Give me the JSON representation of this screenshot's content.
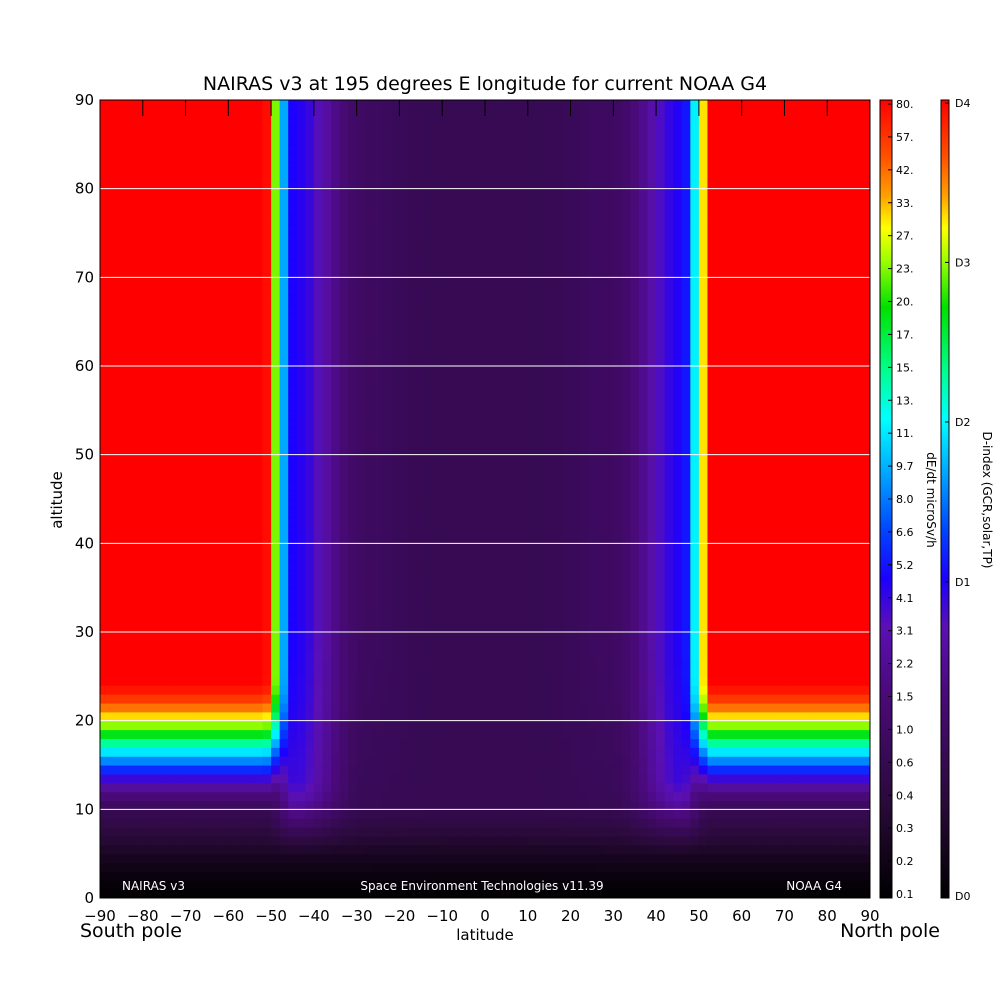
{
  "chart_data": {
    "type": "heatmap",
    "title": "NAIRAS v3 at 195 degrees E longitude for current NOAA G4",
    "xlabel": "latitude",
    "ylabel": "altitude",
    "x_left_label": "South pole",
    "x_right_label": "North pole",
    "xlim": [
      -90,
      90
    ],
    "ylim": [
      0,
      90
    ],
    "x_ticks": [
      "-90",
      "-80",
      "-70",
      "-60",
      "-50",
      "-40",
      "-30",
      "-20",
      "-10",
      "0",
      "10",
      "20",
      "30",
      "40",
      "50",
      "60",
      "70",
      "80",
      "90"
    ],
    "y_ticks": [
      "0",
      "10",
      "20",
      "30",
      "40",
      "50",
      "60",
      "70",
      "80",
      "90"
    ],
    "grid": "horizontal",
    "annotations": {
      "left": "NAIRAS v3",
      "center": "Space Environment Technologies v11.39",
      "right": "NOAA G4"
    },
    "colorbar_dose": {
      "label": "dE/dt microSv/h",
      "ticks": [
        "0.1",
        "0.2",
        "0.3",
        "0.4",
        "0.6",
        "1.0",
        "1.5",
        "2.2",
        "3.1",
        "4.1",
        "5.2",
        "6.6",
        "8.0",
        "9.7",
        "11.",
        "13.",
        "15.",
        "17.",
        "20.",
        "23.",
        "27.",
        "33.",
        "42.",
        "57.",
        "80."
      ]
    },
    "colorbar_dindex": {
      "label": "D-index (GCR,solar,TP)",
      "ticks": [
        "D0",
        "D1",
        "D2",
        "D3",
        "D4"
      ],
      "tick_fraction": [
        0,
        0.396,
        0.5965,
        0.7965,
        0.996
      ]
    },
    "dose_rate_profile": {
      "description_note": "",
      "altitude_km": [
        0,
        5,
        10,
        15,
        20,
        25,
        30,
        40,
        60,
        90
      ],
      "equator_value": [
        0.1,
        0.12,
        0.18,
        0.25,
        0.3,
        0.32,
        0.34,
        0.36,
        0.38,
        0.38
      ],
      "lat_30_value": [
        0.1,
        0.15,
        0.3,
        0.45,
        0.55,
        0.6,
        0.6,
        0.62,
        0.65,
        0.65
      ],
      "lat_45_value": [
        0.15,
        0.3,
        0.8,
        3.0,
        3.5,
        3.0,
        2.5,
        2.2,
        2.0,
        2.0
      ],
      "lat_60_value": [
        0.2,
        0.5,
        2.0,
        6.6,
        20,
        80,
        80,
        80,
        80,
        80
      ],
      "lat_90_value": [
        0.2,
        0.5,
        1.5,
        6.6,
        20,
        80,
        80,
        80,
        80,
        80
      ]
    },
    "colors": {
      "high": "#ff0000",
      "low": "#000000"
    }
  }
}
